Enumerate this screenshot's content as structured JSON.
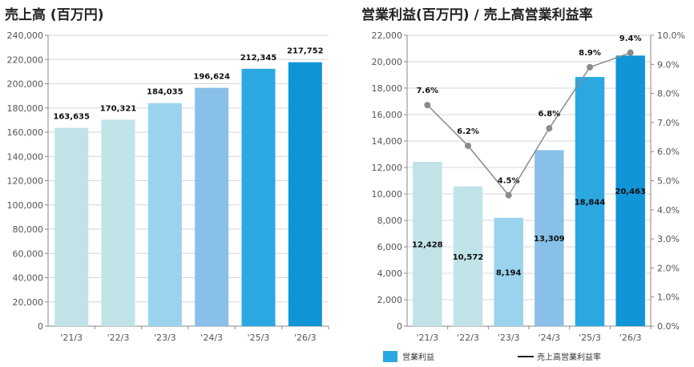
{
  "chart_data": [
    {
      "type": "bar",
      "title": "売上高 (百万円)",
      "categories": [
        "'21/3",
        "'22/3",
        "'23/3",
        "'24/3",
        "'25/3",
        "'26/3"
      ],
      "values": [
        163635,
        170321,
        184035,
        196624,
        212345,
        217752
      ],
      "value_labels": [
        "163,635",
        "170,321",
        "184,035",
        "196,624",
        "212,345",
        "217,752"
      ],
      "ylim": [
        0,
        240000
      ],
      "y_ticks": [
        "0",
        "20,000",
        "40,000",
        "60,000",
        "80,000",
        "100,000",
        "120,000",
        "140,000",
        "160,000",
        "180,000",
        "200,000",
        "220,000",
        "240,000"
      ],
      "bar_colors": [
        "#c0e3e8",
        "#c0e3e8",
        "#9bd3ee",
        "#89c0ea",
        "#2ba8e2",
        "#0f95d8"
      ],
      "grid": true
    },
    {
      "type": "bar+line",
      "title": "営業利益(百万円) / 売上高営業利益率",
      "categories": [
        "'21/3",
        "'22/3",
        "'23/3",
        "'24/3",
        "'25/3",
        "'26/3"
      ],
      "series": [
        {
          "name": "営業利益",
          "type": "bar",
          "values": [
            12428,
            10572,
            8194,
            13309,
            18844,
            20463
          ],
          "value_labels": [
            "12,428",
            "10,572",
            "8,194",
            "13,309",
            "18,844",
            "20,463"
          ]
        },
        {
          "name": "売上高営業利益率",
          "type": "line",
          "axis": "right",
          "values": [
            7.6,
            6.2,
            4.5,
            6.8,
            8.9,
            9.4
          ],
          "value_labels": [
            "7.6%",
            "6.2%",
            "4.5%",
            "6.8%",
            "8.9%",
            "9.4%"
          ]
        }
      ],
      "ylim": [
        0,
        22000
      ],
      "y2lim": [
        0,
        10
      ],
      "y_ticks": [
        "0",
        "2,000",
        "4,000",
        "6,000",
        "8,000",
        "10,000",
        "12,000",
        "14,000",
        "16,000",
        "18,000",
        "20,000",
        "22,000"
      ],
      "y2_ticks": [
        "0.0%",
        "1.0%",
        "2.0%",
        "3.0%",
        "4.0%",
        "5.0%",
        "6.0%",
        "7.0%",
        "8.0%",
        "9.0%",
        "10.0%"
      ],
      "bar_colors": [
        "#c0e3e8",
        "#c0e3e8",
        "#9bd3ee",
        "#89c0ea",
        "#2ba8e2",
        "#0f95d8"
      ],
      "line_color": "#8a8a8a",
      "legend_bar_color": "#2ba8e2",
      "legend_line_color": "#222222",
      "legend_placement": "bottom",
      "grid": true
    }
  ]
}
